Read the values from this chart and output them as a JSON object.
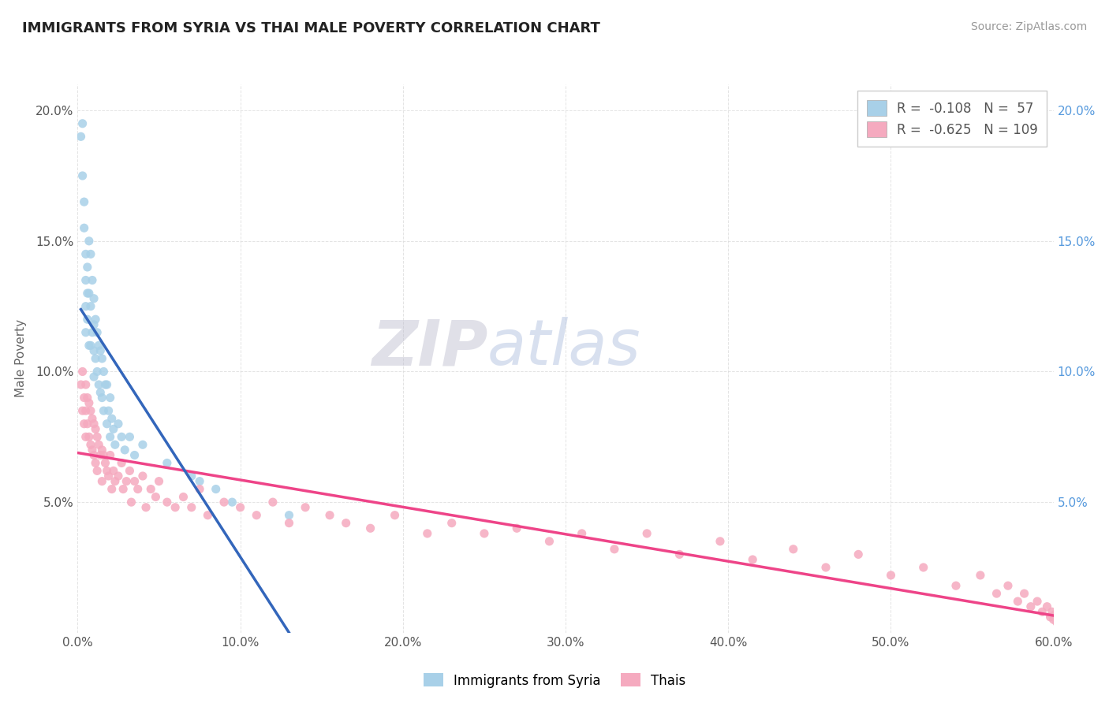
{
  "title": "IMMIGRANTS FROM SYRIA VS THAI MALE POVERTY CORRELATION CHART",
  "source": "Source: ZipAtlas.com",
  "ylabel": "Male Poverty",
  "xlim": [
    0.0,
    0.6
  ],
  "ylim": [
    0.0,
    0.21
  ],
  "xticks": [
    0.0,
    0.1,
    0.2,
    0.3,
    0.4,
    0.5,
    0.6
  ],
  "xticklabels": [
    "0.0%",
    "10.0%",
    "20.0%",
    "30.0%",
    "40.0%",
    "50.0%",
    "60.0%"
  ],
  "yticks": [
    0.0,
    0.05,
    0.1,
    0.15,
    0.2
  ],
  "yticklabels_left": [
    "",
    "5.0%",
    "10.0%",
    "15.0%",
    "20.0%"
  ],
  "yticklabels_right": [
    "",
    "5.0%",
    "10.0%",
    "15.0%",
    "20.0%"
  ],
  "legend_R1": "-0.108",
  "legend_N1": "57",
  "legend_R2": "-0.625",
  "legend_N2": "109",
  "color_syria": "#A8D0E8",
  "color_thai": "#F5AABF",
  "trendline_syria_color": "#3366BB",
  "trendline_thai_color": "#EE4488",
  "trendline_dashed_color": "#AACCEE",
  "watermark_zip": "ZIP",
  "watermark_atlas": "atlas",
  "syria_x": [
    0.002,
    0.003,
    0.003,
    0.004,
    0.004,
    0.005,
    0.005,
    0.005,
    0.005,
    0.006,
    0.006,
    0.006,
    0.007,
    0.007,
    0.007,
    0.008,
    0.008,
    0.008,
    0.009,
    0.009,
    0.01,
    0.01,
    0.01,
    0.01,
    0.011,
    0.011,
    0.012,
    0.012,
    0.013,
    0.013,
    0.014,
    0.014,
    0.015,
    0.015,
    0.016,
    0.016,
    0.017,
    0.018,
    0.018,
    0.019,
    0.02,
    0.02,
    0.021,
    0.022,
    0.023,
    0.025,
    0.027,
    0.029,
    0.032,
    0.035,
    0.04,
    0.055,
    0.07,
    0.075,
    0.085,
    0.095,
    0.13
  ],
  "syria_y": [
    0.19,
    0.195,
    0.175,
    0.165,
    0.155,
    0.145,
    0.135,
    0.125,
    0.115,
    0.14,
    0.13,
    0.12,
    0.15,
    0.13,
    0.11,
    0.145,
    0.125,
    0.11,
    0.135,
    0.115,
    0.128,
    0.118,
    0.108,
    0.098,
    0.12,
    0.105,
    0.115,
    0.1,
    0.11,
    0.095,
    0.108,
    0.092,
    0.105,
    0.09,
    0.1,
    0.085,
    0.095,
    0.095,
    0.08,
    0.085,
    0.09,
    0.075,
    0.082,
    0.078,
    0.072,
    0.08,
    0.075,
    0.07,
    0.075,
    0.068,
    0.072,
    0.065,
    0.06,
    0.058,
    0.055,
    0.05,
    0.045
  ],
  "thai_x": [
    0.002,
    0.003,
    0.003,
    0.004,
    0.004,
    0.005,
    0.005,
    0.005,
    0.006,
    0.006,
    0.007,
    0.007,
    0.008,
    0.008,
    0.009,
    0.009,
    0.01,
    0.01,
    0.011,
    0.011,
    0.012,
    0.012,
    0.013,
    0.014,
    0.015,
    0.015,
    0.016,
    0.017,
    0.018,
    0.019,
    0.02,
    0.021,
    0.022,
    0.023,
    0.025,
    0.027,
    0.028,
    0.03,
    0.032,
    0.033,
    0.035,
    0.037,
    0.04,
    0.042,
    0.045,
    0.048,
    0.05,
    0.055,
    0.06,
    0.065,
    0.07,
    0.075,
    0.08,
    0.09,
    0.1,
    0.11,
    0.12,
    0.13,
    0.14,
    0.155,
    0.165,
    0.18,
    0.195,
    0.215,
    0.23,
    0.25,
    0.27,
    0.29,
    0.31,
    0.33,
    0.35,
    0.37,
    0.395,
    0.415,
    0.44,
    0.46,
    0.48,
    0.5,
    0.52,
    0.54,
    0.555,
    0.565,
    0.572,
    0.578,
    0.582,
    0.586,
    0.59,
    0.593,
    0.596,
    0.598,
    0.599,
    0.6,
    0.601,
    0.602,
    0.603,
    0.604,
    0.605,
    0.606,
    0.607,
    0.608,
    0.609,
    0.61,
    0.611,
    0.612,
    0.613,
    0.614,
    0.615,
    0.616,
    0.617
  ],
  "thai_y": [
    0.095,
    0.085,
    0.1,
    0.09,
    0.08,
    0.095,
    0.085,
    0.075,
    0.09,
    0.08,
    0.088,
    0.075,
    0.085,
    0.072,
    0.082,
    0.07,
    0.08,
    0.068,
    0.078,
    0.065,
    0.075,
    0.062,
    0.072,
    0.068,
    0.07,
    0.058,
    0.068,
    0.065,
    0.062,
    0.06,
    0.068,
    0.055,
    0.062,
    0.058,
    0.06,
    0.065,
    0.055,
    0.058,
    0.062,
    0.05,
    0.058,
    0.055,
    0.06,
    0.048,
    0.055,
    0.052,
    0.058,
    0.05,
    0.048,
    0.052,
    0.048,
    0.055,
    0.045,
    0.05,
    0.048,
    0.045,
    0.05,
    0.042,
    0.048,
    0.045,
    0.042,
    0.04,
    0.045,
    0.038,
    0.042,
    0.038,
    0.04,
    0.035,
    0.038,
    0.032,
    0.038,
    0.03,
    0.035,
    0.028,
    0.032,
    0.025,
    0.03,
    0.022,
    0.025,
    0.018,
    0.022,
    0.015,
    0.018,
    0.012,
    0.015,
    0.01,
    0.012,
    0.008,
    0.01,
    0.006,
    0.008,
    0.005,
    0.007,
    0.004,
    0.006,
    0.003,
    0.005,
    0.003,
    0.004,
    0.002,
    0.004,
    0.002,
    0.003,
    0.002,
    0.003,
    0.001,
    0.002,
    0.002,
    0.001
  ]
}
